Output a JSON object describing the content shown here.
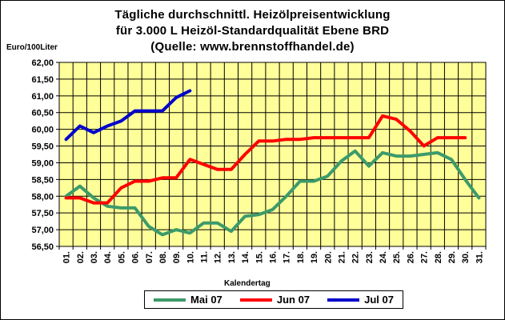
{
  "chart_title": {
    "line1": "Tägliche durchschnittl. Heizölpreisentwicklung",
    "line2": "für 3.000 L Heizöl-Standardqualität Ebene BRD",
    "line3": "(Quelle: www.brennstoffhandel.de)"
  },
  "chart_data": {
    "type": "line",
    "title": "Tägliche durchschnittl. Heizölpreisentwicklung für 3.000 L Heizöl-Standardqualität Ebene BRD (Quelle: www.brennstoffhandel.de)",
    "xlabel": "Kalendertag",
    "ylabel": "Euro/100Liter",
    "ylim": [
      56.5,
      62.0
    ],
    "ytick_labels": [
      "56,50",
      "57,00",
      "57,50",
      "58,00",
      "58,50",
      "59,00",
      "59,50",
      "60,00",
      "60,50",
      "61,00",
      "61,50",
      "62,00"
    ],
    "categories": [
      "01",
      "02",
      "03",
      "04",
      "05",
      "06",
      "07",
      "08",
      "09",
      "10",
      "11",
      "12",
      "13",
      "14",
      "15",
      "16",
      "17",
      "18",
      "19",
      "20",
      "21",
      "22",
      "23",
      "24",
      "25",
      "26",
      "27",
      "28",
      "29",
      "30",
      "31"
    ],
    "grid": true,
    "legend": "bottom",
    "series": [
      {
        "name": "Mai 07",
        "color": "#3c9a6a",
        "values": [
          58.0,
          58.3,
          57.95,
          57.7,
          57.65,
          57.65,
          57.1,
          56.85,
          57.0,
          56.9,
          57.2,
          57.2,
          56.95,
          57.4,
          57.45,
          57.6,
          58.0,
          58.45,
          58.45,
          58.6,
          59.05,
          59.35,
          58.9,
          59.3,
          59.2,
          59.2,
          59.25,
          59.3,
          59.1,
          58.5,
          57.95
        ]
      },
      {
        "name": "Jun 07",
        "color": "#ff0000",
        "values": [
          57.95,
          57.95,
          57.8,
          57.8,
          58.25,
          58.45,
          58.45,
          58.55,
          58.55,
          59.1,
          58.95,
          58.8,
          58.8,
          59.25,
          59.65,
          59.65,
          59.7,
          59.7,
          59.75,
          59.75,
          59.75,
          59.75,
          59.75,
          60.4,
          60.3,
          59.95,
          59.5,
          59.75,
          59.75,
          59.75,
          null
        ]
      },
      {
        "name": "Jul 07",
        "color": "#0000cc",
        "values": [
          59.7,
          60.1,
          59.9,
          60.1,
          60.25,
          60.55,
          60.55,
          60.55,
          60.95,
          61.15,
          null,
          null,
          null,
          null,
          null,
          null,
          null,
          null,
          null,
          null,
          null,
          null,
          null,
          null,
          null,
          null,
          null,
          null,
          null,
          null,
          null
        ]
      }
    ]
  }
}
